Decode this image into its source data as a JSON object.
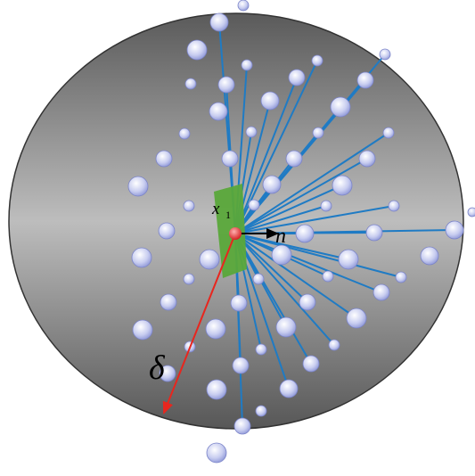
{
  "labels": {
    "point": "x",
    "point_index": "1",
    "normal": "n",
    "radius": "δ"
  }
}
